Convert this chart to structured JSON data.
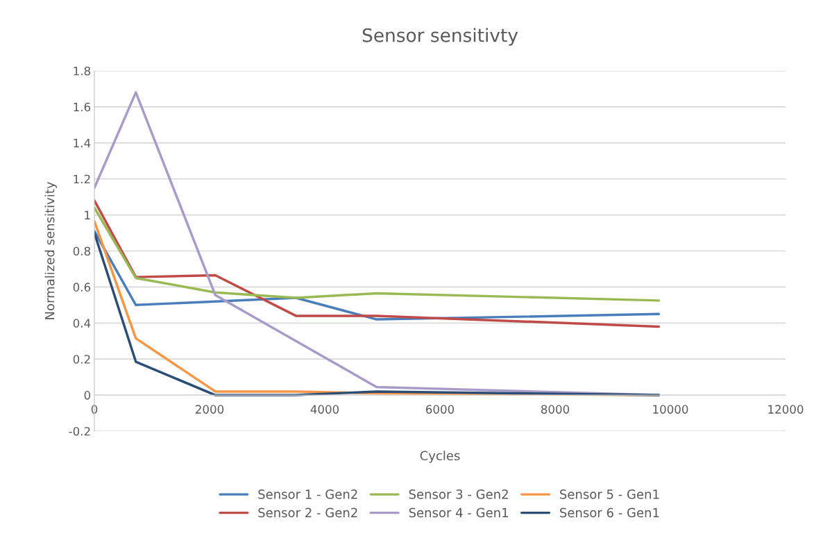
{
  "chart_data": {
    "type": "line",
    "title": "Sensor sensitivty",
    "xlabel": "Cycles",
    "ylabel": "Normalized sensitivity",
    "x": [
      0,
      720,
      2100,
      3500,
      4900,
      9800
    ],
    "series": [
      {
        "name": "Sensor 1 - Gen2",
        "color": "#4a7ebb",
        "values": [
          0.91,
          0.5,
          0.52,
          0.54,
          0.42,
          0.45
        ]
      },
      {
        "name": "Sensor 2 - Gen2",
        "color": "#be4b48",
        "values": [
          1.08,
          0.655,
          0.665,
          0.44,
          0.44,
          0.38
        ]
      },
      {
        "name": "Sensor 3 - Gen2",
        "color": "#98b954",
        "values": [
          1.04,
          0.65,
          0.57,
          0.54,
          0.565,
          0.525
        ]
      },
      {
        "name": "Sensor 4 - Gen1",
        "color": "#a99bc9",
        "values": [
          1.15,
          1.68,
          0.555,
          0.3,
          0.045,
          0.0
        ]
      },
      {
        "name": "Sensor 5 - Gen1",
        "color": "#f79646",
        "values": [
          0.965,
          0.315,
          0.02,
          0.02,
          0.01,
          0.0
        ]
      },
      {
        "name": "Sensor 6 - Gen1",
        "color": "#2c4d75",
        "values": [
          0.9,
          0.185,
          0.0,
          0.0,
          0.02,
          0.0
        ]
      }
    ],
    "xlim": [
      0,
      12000
    ],
    "xticks": [
      0,
      2000,
      4000,
      6000,
      8000,
      10000,
      12000
    ],
    "ylim": [
      -0.2,
      1.8
    ],
    "yticks": [
      {
        "value": -0.2,
        "label": "-0.2"
      },
      0,
      0.2,
      0.4,
      0.6,
      0.8,
      1,
      1.2,
      1.4,
      1.6,
      1.8
    ],
    "grid": "y",
    "legend": "bottom",
    "marker": "none",
    "line_style": "solid"
  }
}
